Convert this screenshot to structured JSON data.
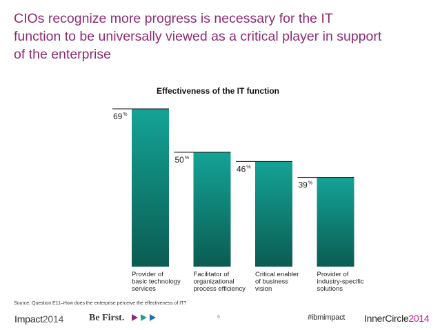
{
  "headline": {
    "line1": "CIOs recognize more progress is necessary for the IT",
    "line2": "function to be universally viewed as a critical player in support",
    "line3": "of the enterprise"
  },
  "chart_data": {
    "type": "bar",
    "title": "Effectiveness of the IT function",
    "categories": [
      [
        "Provider of",
        "basic technology",
        "services"
      ],
      [
        "Facilitator of",
        "organizational",
        "process efficiency"
      ],
      [
        "Critical enabler",
        "of business",
        "vision"
      ],
      [
        "Provider of",
        "industry-specific",
        "solutions"
      ]
    ],
    "values": [
      69,
      50,
      46,
      39
    ],
    "value_suffix": "%",
    "ylim": [
      0,
      69
    ],
    "xlabel": "",
    "ylabel": "",
    "grid": false
  },
  "source": "Source: Question E11–How does the enterprise perceive the effectiveness of IT?",
  "footer": {
    "impact_brand": "Impact",
    "impact_year": "2014",
    "befirst": "Be First.",
    "page_number": "6",
    "hashtag": "#ibmimpact",
    "inner_brand": "InnerCircle",
    "inner_year": "2014"
  },
  "colors": {
    "headline": "#8d2b74",
    "bar_top": "#14a396",
    "bar_bottom": "#0b5c52",
    "arrow1": "#8d2b74",
    "arrow2": "#2c9e8e",
    "arrow3": "#1c6fb8"
  }
}
